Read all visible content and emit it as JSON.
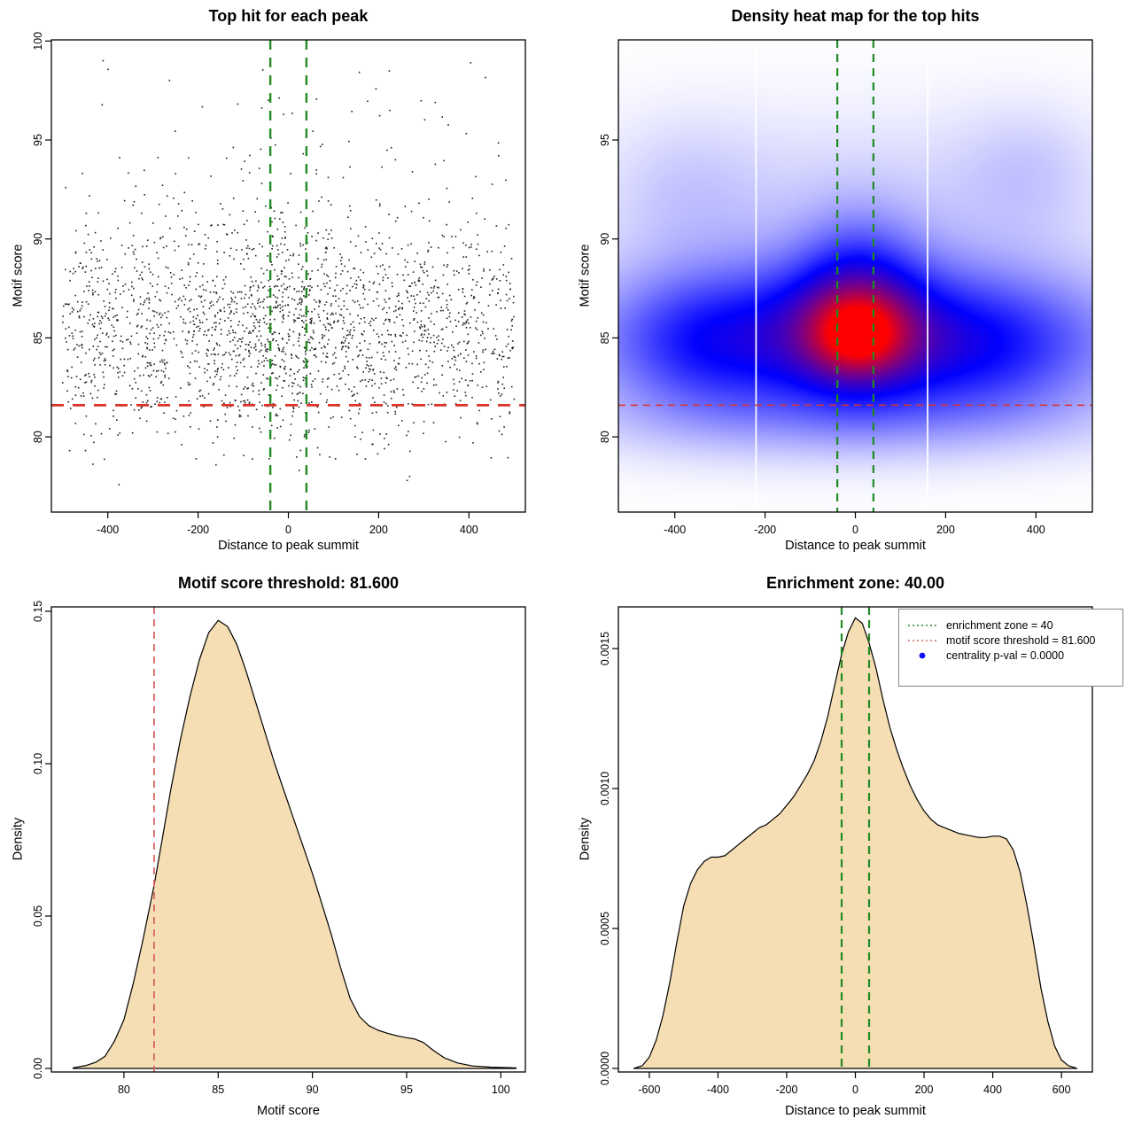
{
  "figure": {
    "background": "#ffffff",
    "rows": 2,
    "cols": 2
  },
  "colors": {
    "green_dashed": "#228B22",
    "red_dashed": "#DC3228",
    "red_soft_dashed": "#D96464",
    "area_fill": "#F5DEB3",
    "curve_stroke": "#000000",
    "scatter_point": "#1F1F1F",
    "legend_blue_dot": "#0D0DFF",
    "heat_low": "#FFFFFF",
    "heat_mid": "#0000FF",
    "heat_high": "#FF0000",
    "white_gridline": "#FFFFFF",
    "legend_border": "#848484"
  },
  "chart_data": [
    {
      "id": "top-hit-scatter",
      "type": "scatter",
      "title": "Top hit for each peak",
      "xlabel": "Distance to peak summit",
      "ylabel": "Motif score",
      "xlim": [
        -525,
        525
      ],
      "ylim": [
        76.2,
        100.06
      ],
      "xticks": {
        "values": [
          -400,
          -200,
          0,
          200,
          400
        ],
        "labels": [
          "-400",
          "-200",
          "0",
          "200",
          "400"
        ]
      },
      "yticks": {
        "values": [
          80,
          85,
          90,
          95,
          100
        ],
        "labels": [
          "80",
          "85",
          "90",
          "95",
          "100"
        ]
      },
      "enrichment_zone": [
        -40,
        40
      ],
      "motif_score_threshold": 81.6,
      "points": {
        "n": 2300,
        "seed": 1337,
        "x_uniform_range": [
          -500,
          500
        ],
        "x_uniform_frac": 0.82,
        "x_center_sigma": 95,
        "y_mode": 85.4,
        "y_sigma": 2.7,
        "y_min": 77.2,
        "y_core_frac": 0.935,
        "y_tail_base": 89.5,
        "y_tail_span": 9.6,
        "y_tail_pow": 1.7,
        "y_max": 99.6
      }
    },
    {
      "id": "density-heatmap",
      "type": "heatmap",
      "title": "Density heat map for the top hits",
      "xlabel": "Distance to peak summit",
      "ylabel": "Motif score",
      "xlim": [
        -525,
        525
      ],
      "ylim": [
        76.2,
        100.06
      ],
      "xticks": {
        "values": [
          -400,
          -200,
          0,
          200,
          400
        ],
        "labels": [
          "-400",
          "-200",
          "0",
          "200",
          "400"
        ]
      },
      "yticks": {
        "values": [
          80,
          85,
          90,
          95
        ],
        "labels": [
          "80",
          "85",
          "90",
          "95"
        ]
      },
      "enrichment_zone": [
        -40,
        40
      ],
      "motif_score_threshold": 81.6,
      "white_gridlines_x": [
        -220,
        160
      ],
      "colormap": {
        "low": "#FFFFFF",
        "mid": "#0000FF",
        "high": "#FF0000",
        "mid_at": 0.45
      },
      "intensity_scale": 0.95,
      "density_components": [
        [
          0.46,
          0,
          380,
          85.0,
          2.7
        ],
        [
          0.24,
          0,
          110,
          85.3,
          2.4
        ],
        [
          0.42,
          5,
          70,
          85.2,
          1.35
        ],
        [
          0.18,
          10,
          95,
          88.2,
          2.4
        ],
        [
          0.16,
          -340,
          140,
          84.6,
          2.4
        ],
        [
          0.14,
          300,
          170,
          84.3,
          2.2
        ],
        [
          0.1,
          0,
          430,
          80.8,
          1.5
        ],
        [
          0.08,
          0,
          380,
          91.5,
          3.5
        ],
        [
          0.07,
          380,
          110,
          93.5,
          2.3
        ],
        [
          0.06,
          -380,
          120,
          92.5,
          2.6
        ]
      ]
    },
    {
      "id": "motif-score-density",
      "type": "area",
      "title": "Motif score threshold: 81.600",
      "xlabel": "Motif score",
      "ylabel": "Density",
      "xlim": [
        76.15,
        101.3
      ],
      "ylim": [
        -0.001163,
        0.15145
      ],
      "xticks": {
        "values": [
          80,
          85,
          90,
          95,
          100
        ],
        "labels": [
          "80",
          "85",
          "90",
          "95",
          "100"
        ]
      },
      "yticks": {
        "values": [
          0,
          0.05,
          0.1,
          0.15
        ],
        "labels": [
          "0.00",
          "0.05",
          "0.10",
          "0.15"
        ]
      },
      "motif_score_threshold": 81.6,
      "curve": {
        "x": [
          77.3,
          78,
          78.5,
          79,
          79.5,
          80,
          80.5,
          81,
          81.6,
          82,
          82.5,
          83,
          83.5,
          84,
          84.5,
          85,
          85.5,
          86,
          86.5,
          87,
          87.5,
          88,
          88.5,
          89,
          89.5,
          90,
          90.5,
          91,
          91.5,
          92,
          92.5,
          93,
          93.5,
          94,
          94.5,
          95,
          95.4,
          95.9,
          96.4,
          97,
          97.7,
          98.5,
          99.5,
          100.8
        ],
        "y": [
          0.0002,
          0.001,
          0.002,
          0.004,
          0.009,
          0.016,
          0.028,
          0.042,
          0.06,
          0.074,
          0.092,
          0.108,
          0.122,
          0.134,
          0.143,
          0.147,
          0.145,
          0.139,
          0.13,
          0.12,
          0.11,
          0.1,
          0.091,
          0.082,
          0.073,
          0.064,
          0.054,
          0.044,
          0.033,
          0.023,
          0.017,
          0.014,
          0.0125,
          0.0115,
          0.0107,
          0.0101,
          0.0097,
          0.0085,
          0.006,
          0.0035,
          0.0018,
          0.0008,
          0.0004,
          0.0002
        ]
      }
    },
    {
      "id": "distance-density",
      "type": "area",
      "title": "Enrichment zone: 40.00",
      "xlabel": "Distance to peak summit",
      "ylabel": "Density",
      "xlim": [
        -690,
        690
      ],
      "ylim": [
        -1.27e-05,
        0.001649
      ],
      "xticks": {
        "values": [
          -600,
          -400,
          -200,
          0,
          200,
          400,
          600
        ],
        "labels": [
          "-600",
          "-400",
          "-200",
          "0",
          "200",
          "400",
          "600"
        ]
      },
      "yticks": {
        "values": [
          0,
          0.0005,
          0.001,
          0.0015
        ],
        "labels": [
          "0.0000",
          "0.0005",
          "0.0010",
          "0.0015"
        ]
      },
      "enrichment_zone": [
        -40,
        40
      ],
      "curve": {
        "x": [
          -645,
          -620,
          -600,
          -580,
          -560,
          -540,
          -520,
          -500,
          -480,
          -460,
          -440,
          -420,
          -400,
          -380,
          -360,
          -340,
          -320,
          -300,
          -280,
          -260,
          -240,
          -220,
          -200,
          -180,
          -160,
          -140,
          -120,
          -100,
          -80,
          -60,
          -40,
          -20,
          0,
          20,
          40,
          60,
          80,
          100,
          120,
          140,
          160,
          180,
          200,
          220,
          240,
          260,
          280,
          300,
          320,
          340,
          360,
          380,
          400,
          420,
          440,
          460,
          480,
          500,
          520,
          540,
          560,
          580,
          600,
          620,
          645
        ],
        "y": [
          0,
          1e-05,
          4e-05,
          0.0001,
          0.00019,
          0.00031,
          0.00045,
          0.00058,
          0.00066,
          0.00071,
          0.00074,
          0.000755,
          0.000755,
          0.00076,
          0.00078,
          0.0008,
          0.00082,
          0.00084,
          0.00086,
          0.00087,
          0.00089,
          0.00091,
          0.00094,
          0.00097,
          0.00101,
          0.00105,
          0.0011,
          0.00117,
          0.00126,
          0.00137,
          0.00148,
          0.00156,
          0.00161,
          0.00159,
          0.00152,
          0.00143,
          0.00132,
          0.00122,
          0.00114,
          0.00107,
          0.00101,
          0.00096,
          0.00092,
          0.00089,
          0.00087,
          0.00086,
          0.00085,
          0.00084,
          0.000835,
          0.00083,
          0.000825,
          0.000825,
          0.00083,
          0.00083,
          0.00082,
          0.00078,
          0.0007,
          0.00058,
          0.00044,
          0.00029,
          0.00017,
          8e-05,
          3e-05,
          1e-05,
          0
        ]
      },
      "legend": [
        {
          "label": "enrichment zone = 40",
          "swatch": "green-dotted-line"
        },
        {
          "label": "motif score threshold = 81.600",
          "swatch": "red-dotted-line"
        },
        {
          "label": "centrality p-val = 0.0000",
          "swatch": "blue-dot"
        }
      ]
    }
  ]
}
